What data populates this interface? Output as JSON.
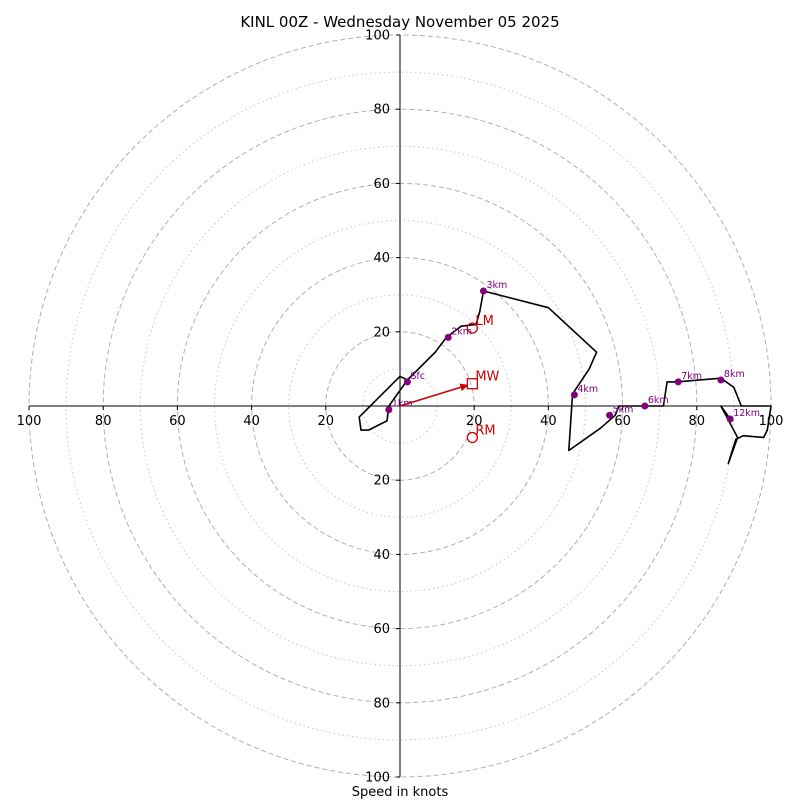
{
  "chart_data": {
    "type": "scatter",
    "subtype": "hodograph",
    "title": "KINL 00Z - Wednesday November 05 2025",
    "xlabel": "Speed in knots",
    "ylabel": "",
    "xlim": [
      -100,
      100
    ],
    "ylim": [
      -100,
      100
    ],
    "rings": {
      "major": [
        20,
        40,
        60,
        80,
        100
      ],
      "minor": [
        10,
        30,
        50,
        70,
        90
      ]
    },
    "x_tick_labels": [
      "100",
      "80",
      "60",
      "40",
      "20",
      "20",
      "40",
      "60",
      "80",
      "100"
    ],
    "y_tick_labels": [
      "100",
      "80",
      "60",
      "40",
      "20",
      "20",
      "40",
      "60",
      "80",
      "100"
    ],
    "grid": true,
    "colors": {
      "trace": "#000000",
      "height_points": "#800080",
      "motion": "#cc0000",
      "ring": "#b0b0b0"
    },
    "trace": [
      [
        2,
        7
      ],
      [
        0,
        8
      ],
      [
        -3,
        5
      ],
      [
        -8,
        0
      ],
      [
        -11,
        -3
      ],
      [
        -10.5,
        -6.5
      ],
      [
        -8.5,
        -6.5
      ],
      [
        -3.5,
        -4
      ],
      [
        -3,
        0
      ],
      [
        2,
        7
      ],
      [
        9.5,
        14.5
      ],
      [
        12.5,
        18.5
      ],
      [
        16.5,
        21.5
      ],
      [
        20.5,
        22
      ],
      [
        21.5,
        25.5
      ],
      [
        22.5,
        31
      ],
      [
        40,
        26.5
      ],
      [
        53,
        14.5
      ],
      [
        51,
        10
      ],
      [
        47,
        4
      ],
      [
        46.5,
        3
      ],
      [
        45.5,
        -12
      ],
      [
        54,
        -6
      ],
      [
        58,
        -2.5
      ],
      [
        59,
        0
      ],
      [
        65,
        0
      ],
      [
        71,
        0
      ],
      [
        72,
        6.5
      ],
      [
        74.5,
        6.5
      ],
      [
        86.5,
        7.5
      ],
      [
        90,
        5
      ],
      [
        92,
        0
      ],
      [
        97,
        0
      ],
      [
        100,
        0
      ],
      [
        99,
        -6.5
      ],
      [
        98,
        -8.5
      ],
      [
        92.5,
        -8
      ],
      [
        90.5,
        -9
      ],
      [
        88.5,
        -15.5
      ],
      [
        91,
        -8.5
      ],
      [
        86.5,
        0
      ],
      [
        89,
        -3.5
      ]
    ],
    "height_points": [
      {
        "label": "Sfc",
        "x": 2,
        "y": 6.5
      },
      {
        "label": "1km",
        "x": -3,
        "y": -1
      },
      {
        "label": "2km",
        "x": 13,
        "y": 18.5
      },
      {
        "label": "3km",
        "x": 22.5,
        "y": 31
      },
      {
        "label": "4km",
        "x": 47,
        "y": 3
      },
      {
        "label": "5km",
        "x": 56.5,
        "y": -2.5
      },
      {
        "label": "6km",
        "x": 66,
        "y": 0
      },
      {
        "label": "7km",
        "x": 75,
        "y": 6.5
      },
      {
        "label": "8km",
        "x": 86.5,
        "y": 7
      },
      {
        "label": "12km",
        "x": 89,
        "y": -3.5
      }
    ],
    "storm_motion": [
      {
        "label": "LM",
        "x": 19.5,
        "y": 21,
        "marker": "circle"
      },
      {
        "label": "MW",
        "x": 19.5,
        "y": 6,
        "marker": "square"
      },
      {
        "label": "RM",
        "x": 19.5,
        "y": -8.5,
        "marker": "circle"
      }
    ],
    "motion_arrow": {
      "from": [
        0,
        0
      ],
      "to": [
        19.5,
        6
      ]
    }
  }
}
